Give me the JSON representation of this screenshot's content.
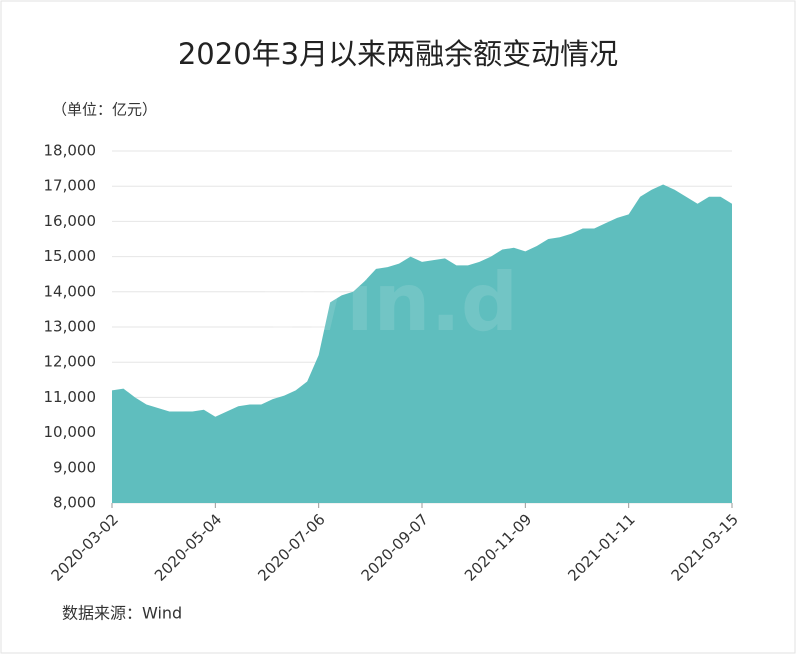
{
  "chart_data": {
    "type": "area",
    "title": "2020年3月以来两融余额变动情况",
    "unit_label": "（单位：亿元）",
    "source": "数据来源：Wind",
    "watermark": "Win.d",
    "color": "#5fbebe",
    "x": [
      "2020-03-02",
      "2020-03-09",
      "2020-03-16",
      "2020-03-23",
      "2020-03-30",
      "2020-04-06",
      "2020-04-13",
      "2020-04-20",
      "2020-04-27",
      "2020-05-04",
      "2020-05-11",
      "2020-05-18",
      "2020-05-25",
      "2020-06-01",
      "2020-06-08",
      "2020-06-15",
      "2020-06-22",
      "2020-06-29",
      "2020-07-06",
      "2020-07-13",
      "2020-07-20",
      "2020-07-27",
      "2020-08-03",
      "2020-08-10",
      "2020-08-17",
      "2020-08-24",
      "2020-08-31",
      "2020-09-07",
      "2020-09-14",
      "2020-09-21",
      "2020-09-28",
      "2020-10-05",
      "2020-10-12",
      "2020-10-19",
      "2020-10-26",
      "2020-11-02",
      "2020-11-09",
      "2020-11-16",
      "2020-11-23",
      "2020-11-30",
      "2020-12-07",
      "2020-12-14",
      "2020-12-21",
      "2020-12-28",
      "2021-01-04",
      "2021-01-11",
      "2021-01-18",
      "2021-01-25",
      "2021-02-01",
      "2021-02-08",
      "2021-02-15",
      "2021-02-22",
      "2021-03-01",
      "2021-03-08",
      "2021-03-15"
    ],
    "values": [
      11200,
      11250,
      11000,
      10800,
      10700,
      10600,
      10600,
      10600,
      10650,
      10450,
      10600,
      10750,
      10800,
      10800,
      10950,
      11050,
      11200,
      11450,
      12200,
      13700,
      13900,
      14000,
      14300,
      14650,
      14700,
      14800,
      15000,
      14850,
      14900,
      14950,
      14750,
      14750,
      14850,
      15000,
      15200,
      15250,
      15150,
      15300,
      15500,
      15550,
      15650,
      15800,
      15800,
      15950,
      16100,
      16200,
      16700,
      16900,
      17050,
      16900,
      16700,
      16500,
      16700,
      16700,
      16500
    ],
    "xlim": [
      "2020-03-02",
      "2021-03-15"
    ],
    "xticks": [
      "2020-03-02",
      "2020-05-04",
      "2020-07-06",
      "2020-09-07",
      "2020-11-09",
      "2021-01-11",
      "2021-03-15"
    ],
    "ylim": [
      8000,
      18000
    ],
    "yticks": [
      {
        "value": 8000,
        "label": "8,000"
      },
      {
        "value": 9000,
        "label": "9,000"
      },
      {
        "value": 10000,
        "label": "10,000"
      },
      {
        "value": 11000,
        "label": "11,000"
      },
      {
        "value": 12000,
        "label": "12,000"
      },
      {
        "value": 13000,
        "label": "13,000"
      },
      {
        "value": 14000,
        "label": "14,000"
      },
      {
        "value": 15000,
        "label": "15,000"
      },
      {
        "value": 16000,
        "label": "16,000"
      },
      {
        "value": 17000,
        "label": "17,000"
      },
      {
        "value": 18000,
        "label": "18,000"
      }
    ],
    "grid": true
  }
}
